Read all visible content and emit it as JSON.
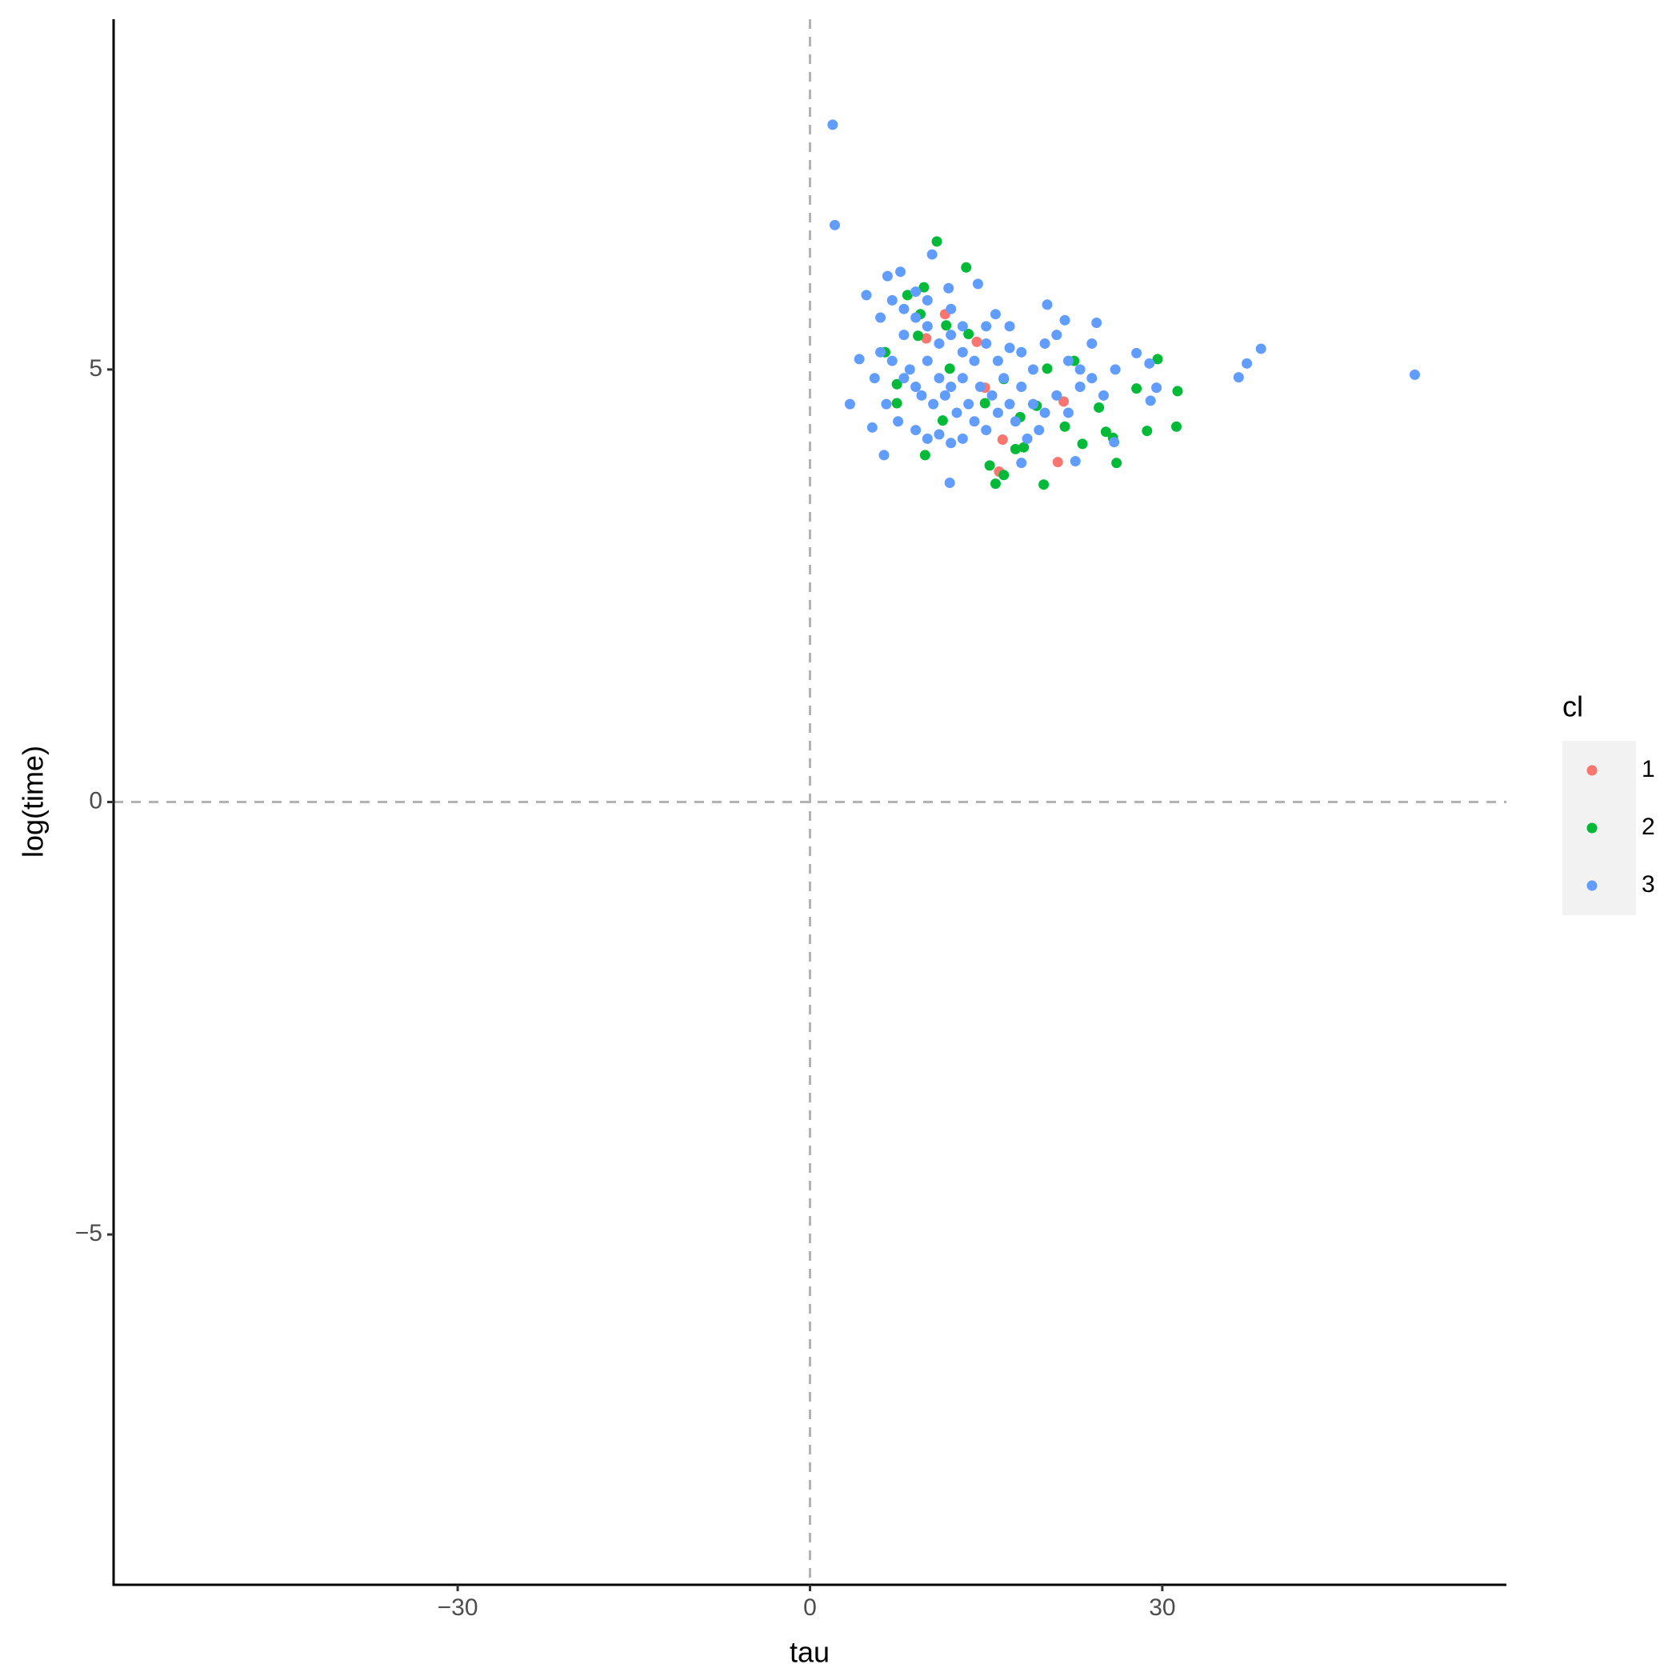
{
  "chart_data": {
    "type": "scatter",
    "x_label": "tau",
    "y_label": "log(time)",
    "legend_title": "cl",
    "xlim": [
      -59.3,
      59.3
    ],
    "ylim": [
      -9.05,
      9.05
    ],
    "xticks": [
      {
        "value": -30,
        "label": "−30"
      },
      0,
      30
    ],
    "yticks": [
      {
        "value": -5,
        "label": "−5"
      },
      0,
      5
    ],
    "vlines": [
      0
    ],
    "hlines": [
      0
    ],
    "legend_position": "right",
    "series": [
      {
        "name": "1",
        "color": "#F8766D",
        "x": [
          11.5,
          14.2,
          9.9,
          14.9,
          21.6,
          21.1,
          16.1,
          16.4
        ],
        "values": [
          5.64,
          5.32,
          5.36,
          4.79,
          4.63,
          3.93,
          3.82,
          4.19
        ]
      },
      {
        "name": "2",
        "color": "#00BA38",
        "x": [
          10.8,
          13.3,
          9.7,
          8.3,
          29.6,
          31.3,
          31.2,
          28.7,
          26.1,
          19.9,
          15.8,
          16.5,
          15.3,
          9.8,
          27.8,
          25.8,
          25.2,
          23.2,
          20.2,
          22.5,
          17.5,
          18.2,
          24.6,
          21.7,
          7.4,
          7.4,
          11.3,
          14.9,
          17.9,
          9.4,
          11.6,
          13.5,
          16.5,
          19.3,
          11.9,
          6.4,
          9.2
        ],
        "values": [
          6.48,
          6.18,
          5.95,
          5.86,
          5.12,
          4.75,
          4.34,
          4.29,
          3.92,
          3.67,
          3.68,
          3.78,
          3.89,
          4.01,
          4.78,
          4.21,
          4.28,
          4.14,
          5.01,
          5.1,
          4.08,
          4.1,
          4.56,
          4.34,
          4.61,
          4.83,
          4.41,
          4.61,
          4.45,
          5.64,
          5.51,
          5.41,
          4.89,
          4.58,
          5.01,
          5.2,
          5.39
        ]
      },
      {
        "name": "3",
        "color": "#619CFF",
        "x": [
          1.93,
          2.11,
          51.5,
          38.4,
          37.2,
          36.5,
          10.4,
          14.3,
          7.7,
          6.6,
          4.8,
          20.2,
          21.7,
          24.4,
          27.8,
          28.9,
          29.5,
          29.0,
          25.9,
          22.6,
          18.0,
          11.9,
          6.3,
          3.4,
          4.2,
          5.3,
          11.8,
          15.8,
          8,
          8.5,
          9,
          9.5,
          10,
          10.5,
          11,
          11.5,
          12,
          12.5,
          13,
          13.5,
          14,
          14.5,
          15,
          15.5,
          16,
          16.5,
          17,
          17.5,
          18,
          18.5,
          19,
          19.5,
          20,
          21,
          22,
          23,
          24,
          25,
          26,
          7,
          6,
          5.5,
          6.5,
          7.5,
          9,
          10,
          11,
          12,
          13,
          8,
          9,
          10,
          11,
          12,
          13,
          14,
          15,
          16,
          17,
          18,
          19,
          20,
          21,
          22,
          23,
          24,
          6,
          7,
          8,
          9,
          10,
          12,
          13,
          15,
          17
        ],
        "values": [
          7.83,
          6.67,
          4.94,
          5.24,
          5.07,
          4.91,
          6.33,
          5.99,
          6.13,
          6.08,
          5.86,
          5.75,
          5.57,
          5.54,
          5.19,
          5.07,
          4.79,
          4.64,
          4.16,
          3.94,
          3.92,
          3.69,
          4.01,
          4.6,
          5.12,
          4.33,
          5.94,
          5.64,
          4.9,
          5.0,
          4.8,
          4.7,
          5.1,
          4.6,
          4.9,
          4.7,
          4.8,
          4.5,
          4.9,
          4.6,
          4.4,
          4.8,
          4.3,
          4.7,
          4.5,
          4.9,
          4.6,
          4.4,
          4.8,
          4.2,
          4.6,
          4.3,
          4.5,
          4.7,
          4.5,
          4.8,
          4.9,
          4.7,
          5.0,
          5.1,
          5.2,
          4.9,
          4.6,
          4.4,
          4.3,
          4.2,
          4.25,
          4.15,
          4.2,
          5.4,
          5.6,
          5.5,
          5.3,
          5.4,
          5.2,
          5.1,
          5.3,
          5.1,
          5.25,
          5.2,
          5.0,
          5.3,
          5.4,
          5.1,
          5.0,
          5.3,
          5.6,
          5.8,
          5.7,
          5.9,
          5.8,
          5.7,
          5.5,
          5.5,
          5.5
        ]
      }
    ]
  }
}
